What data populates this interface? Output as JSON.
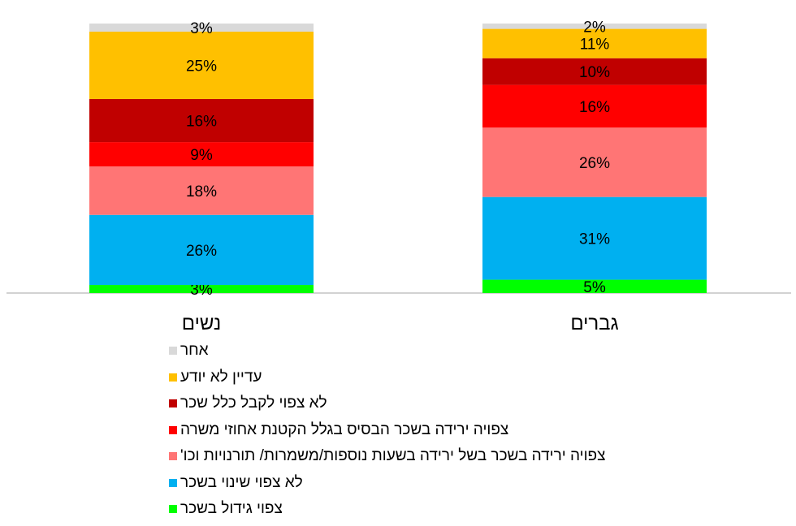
{
  "chart_data": {
    "type": "bar",
    "stacked": true,
    "normalized_percent": true,
    "categories": [
      "נשים",
      "גברים"
    ],
    "series": [
      {
        "name": "צפוי גידול בשכר",
        "color": "#00FF00",
        "values": [
          3,
          5
        ],
        "labels": [
          "3%",
          "5%"
        ]
      },
      {
        "name": "לא צפוי שינוי בשכר",
        "color": "#00B0F0",
        "values": [
          26,
          31
        ],
        "labels": [
          "26%",
          "31%"
        ]
      },
      {
        "name": "צפויה ירידה בשכר בשל ירידה בשעות נוספות/משמרות/ תורנויות וכו'",
        "color": "#FF7575",
        "values": [
          18,
          26
        ],
        "labels": [
          "18%",
          "26%"
        ]
      },
      {
        "name": "צפויה ירידה בשכר הבסיס בגלל הקטנת אחוזי משרה",
        "color": "#FF0000",
        "values": [
          9,
          16
        ],
        "labels": [
          "9%",
          "16%"
        ]
      },
      {
        "name": "לא צפוי לקבל כלל שכר",
        "color": "#C00000",
        "values": [
          16,
          10
        ],
        "labels": [
          "16%",
          "10%"
        ]
      },
      {
        "name": "עדיין לא יודע",
        "color": "#FFC000",
        "values": [
          25,
          11
        ],
        "labels": [
          "25%",
          "11%"
        ]
      },
      {
        "name": "אחר",
        "color": "#D9D9D9",
        "values": [
          3,
          2
        ],
        "labels": [
          "3%",
          "2%"
        ]
      }
    ],
    "legend_position": "bottom",
    "legend_order": [
      "אחר",
      "עדיין לא יודע",
      "לא צפוי לקבל כלל שכר",
      "צפויה ירידה בשכר הבסיס בגלל הקטנת אחוזי משרה",
      "צפויה ירידה בשכר בשל ירידה בשעות נוספות/משמרות/ תורנויות וכו'",
      "לא צפוי שינוי בשכר",
      "צפוי גידול בשכר"
    ],
    "grid": false
  }
}
